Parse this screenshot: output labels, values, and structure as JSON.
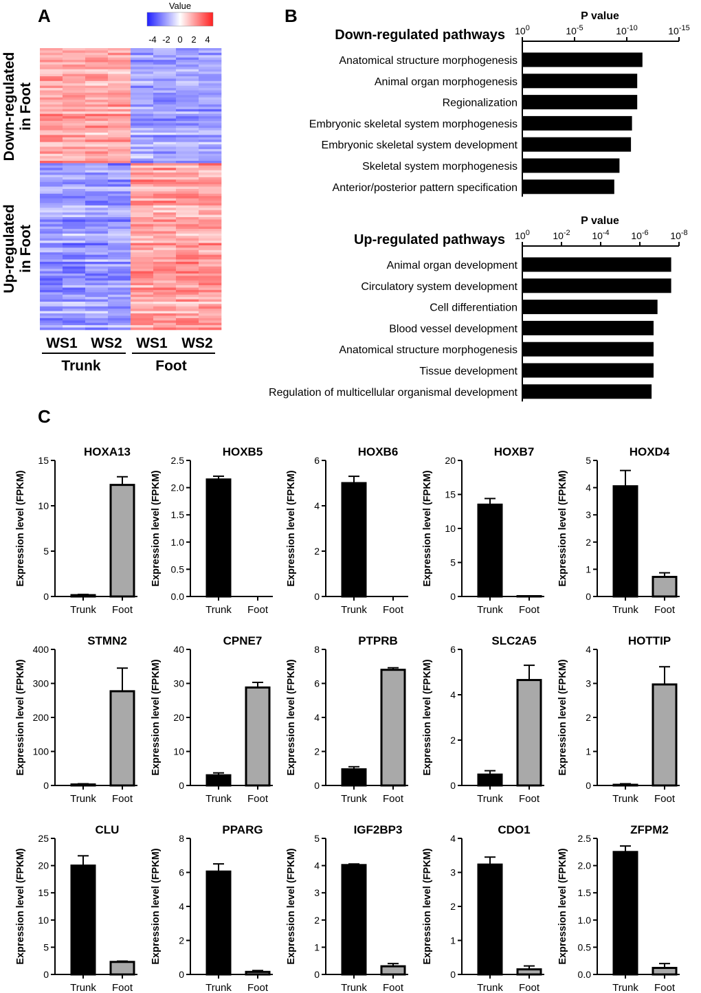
{
  "panels": {
    "a": "A",
    "b": "B",
    "c": "C"
  },
  "heatmap": {
    "colorbar": {
      "title": "Value",
      "ticks": [
        "-4",
        "-2",
        "0",
        "2",
        "4"
      ],
      "min": -4,
      "max": 4,
      "low_color": "#1f1fff",
      "mid_color": "#ffffff",
      "high_color": "#ff2020"
    },
    "row_groups": [
      {
        "label_line1": "Down-regulated",
        "label_line2": "in Foot"
      },
      {
        "label_line1": "Up-regulated",
        "label_line2": "in Foot"
      }
    ],
    "columns": [
      "WS1",
      "WS2",
      "WS1",
      "WS2"
    ],
    "column_groups": [
      "Trunk",
      "Foot"
    ]
  },
  "pathways": [
    {
      "title": "Down-regulated pathways",
      "axis_title": "P value",
      "ticks": [
        {
          "base": "10",
          "exp": "0"
        },
        {
          "base": "10",
          "exp": "-5"
        },
        {
          "base": "10",
          "exp": "-10"
        },
        {
          "base": "10",
          "exp": "-15"
        }
      ],
      "log_max": 15,
      "items": [
        {
          "label": "Anatomical structure morphogenesis",
          "neg_log_p": 11.5
        },
        {
          "label": "Animal organ morphogenesis",
          "neg_log_p": 11.0
        },
        {
          "label": "Regionalization",
          "neg_log_p": 11.0
        },
        {
          "label": "Embryonic skeletal system morphogenesis",
          "neg_log_p": 10.5
        },
        {
          "label": "Embryonic skeletal system development",
          "neg_log_p": 10.4
        },
        {
          "label": "Skeletal system morphogenesis",
          "neg_log_p": 9.3
        },
        {
          "label": "Anterior/posterior pattern specification",
          "neg_log_p": 8.8
        }
      ]
    },
    {
      "title": "Up-regulated pathways",
      "axis_title": "P value",
      "ticks": [
        {
          "base": "10",
          "exp": "0"
        },
        {
          "base": "10",
          "exp": "-2"
        },
        {
          "base": "10",
          "exp": "-4"
        },
        {
          "base": "10",
          "exp": "-6"
        },
        {
          "base": "10",
          "exp": "-8"
        }
      ],
      "log_max": 8,
      "items": [
        {
          "label": "Animal organ development",
          "neg_log_p": 7.6
        },
        {
          "label": "Circulatory system development",
          "neg_log_p": 7.6
        },
        {
          "label": "Cell differentiation",
          "neg_log_p": 6.9
        },
        {
          "label": "Blood vessel development",
          "neg_log_p": 6.7
        },
        {
          "label": "Anatomical structure morphogenesis",
          "neg_log_p": 6.7
        },
        {
          "label": "Tissue development",
          "neg_log_p": 6.7
        },
        {
          "label": "Regulation of multicellular organismal development",
          "neg_log_p": 6.6
        }
      ]
    }
  ],
  "chart_data": {
    "type": "bar",
    "ylabel": "Expression level (FPKM)",
    "categories": [
      "Trunk",
      "Foot"
    ],
    "bar_colors": [
      "#000000",
      "#a9a9a9"
    ],
    "genes": [
      {
        "title": "HOXA13",
        "ylim": [
          0,
          15
        ],
        "ticks": [
          "0",
          "5",
          "10",
          "15"
        ],
        "values": [
          0.15,
          12.3
        ],
        "errors": [
          0.08,
          0.9
        ]
      },
      {
        "title": "HOXB5",
        "ylim": [
          0,
          2.5
        ],
        "ticks": [
          "0.0",
          "0.5",
          "1.0",
          "1.5",
          "2.0",
          "2.5"
        ],
        "values": [
          2.15,
          0.0
        ],
        "errors": [
          0.06,
          0.0
        ]
      },
      {
        "title": "HOXB6",
        "ylim": [
          0,
          6
        ],
        "ticks": [
          "0",
          "2",
          "4",
          "6"
        ],
        "values": [
          5.0,
          0.0
        ],
        "errors": [
          0.3,
          0.0
        ]
      },
      {
        "title": "HOXB7",
        "ylim": [
          0,
          20
        ],
        "ticks": [
          "0",
          "5",
          "10",
          "15",
          "20"
        ],
        "values": [
          13.5,
          0.05
        ],
        "errors": [
          0.9,
          0.05
        ]
      },
      {
        "title": "HOXD4",
        "ylim": [
          0,
          5
        ],
        "ticks": [
          "0",
          "1",
          "2",
          "3",
          "4",
          "5"
        ],
        "values": [
          4.05,
          0.72
        ],
        "errors": [
          0.58,
          0.15
        ]
      },
      {
        "title": "STMN2",
        "ylim": [
          0,
          400
        ],
        "ticks": [
          "0",
          "100",
          "200",
          "300",
          "400"
        ],
        "values": [
          3,
          277
        ],
        "errors": [
          2,
          68
        ]
      },
      {
        "title": "CPNE7",
        "ylim": [
          0,
          40
        ],
        "ticks": [
          "0",
          "10",
          "20",
          "30",
          "40"
        ],
        "values": [
          3.0,
          28.8
        ],
        "errors": [
          0.7,
          1.5
        ]
      },
      {
        "title": "PTPRB",
        "ylim": [
          0,
          8
        ],
        "ticks": [
          "0",
          "2",
          "4",
          "6",
          "8"
        ],
        "values": [
          0.95,
          6.8
        ],
        "errors": [
          0.15,
          0.12
        ]
      },
      {
        "title": "SLC2A5",
        "ylim": [
          0,
          6
        ],
        "ticks": [
          "0",
          "2",
          "4",
          "6"
        ],
        "values": [
          0.48,
          4.65
        ],
        "errors": [
          0.17,
          0.65
        ]
      },
      {
        "title": "HOTTIP",
        "ylim": [
          0,
          4
        ],
        "ticks": [
          "0",
          "1",
          "2",
          "3",
          "4"
        ],
        "values": [
          0.02,
          2.97
        ],
        "errors": [
          0.03,
          0.52
        ]
      },
      {
        "title": "CLU",
        "ylim": [
          0,
          25
        ],
        "ticks": [
          "0",
          "5",
          "10",
          "15",
          "20",
          "25"
        ],
        "values": [
          20.0,
          2.3
        ],
        "errors": [
          1.8,
          0.15
        ]
      },
      {
        "title": "PPARG",
        "ylim": [
          0,
          8
        ],
        "ticks": [
          "0",
          "2",
          "4",
          "6",
          "8"
        ],
        "values": [
          6.05,
          0.15
        ],
        "errors": [
          0.45,
          0.08
        ]
      },
      {
        "title": "IGF2BP3",
        "ylim": [
          0,
          5
        ],
        "ticks": [
          "0",
          "1",
          "2",
          "3",
          "4",
          "5"
        ],
        "values": [
          4.02,
          0.3
        ],
        "errors": [
          0.04,
          0.1
        ]
      },
      {
        "title": "CDO1",
        "ylim": [
          0,
          4
        ],
        "ticks": [
          "0",
          "1",
          "2",
          "3",
          "4"
        ],
        "values": [
          3.23,
          0.15
        ],
        "errors": [
          0.22,
          0.1
        ]
      },
      {
        "title": "ZFPM2",
        "ylim": [
          0,
          2.5
        ],
        "ticks": [
          "0.0",
          "0.5",
          "1.0",
          "1.5",
          "2.0",
          "2.5"
        ],
        "values": [
          2.25,
          0.12
        ],
        "errors": [
          0.11,
          0.08
        ]
      }
    ]
  }
}
